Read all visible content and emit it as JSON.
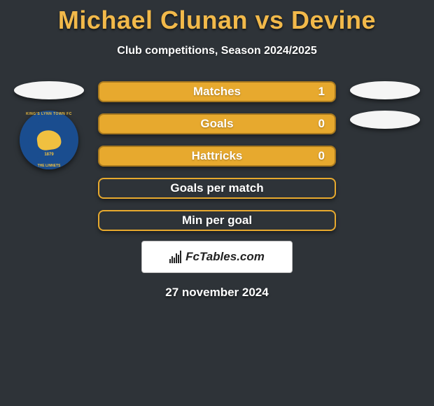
{
  "title": "Michael Clunan vs Devine",
  "subtitle": "Club competitions, Season 2024/2025",
  "date": "27 november 2024",
  "watermark_text": "FcTables.com",
  "colors": {
    "background": "#2e3338",
    "title_color": "#f2b94a",
    "text_color": "#ffffff",
    "oval_bg": "#f5f5f5",
    "bar_fill_primary": "#e7a92e",
    "bar_border": "#a8791f",
    "bar_empty_bg": "#2e3338",
    "bar_empty_border": "#e7a92e"
  },
  "stats": [
    {
      "label": "Matches",
      "value": "1",
      "fill": 1.0,
      "has_value": true
    },
    {
      "label": "Goals",
      "value": "0",
      "fill": 1.0,
      "has_value": true
    },
    {
      "label": "Hattricks",
      "value": "0",
      "fill": 1.0,
      "has_value": true
    },
    {
      "label": "Goals per match",
      "value": "",
      "fill": 0.0,
      "has_value": false
    },
    {
      "label": "Min per goal",
      "value": "",
      "fill": 0.0,
      "has_value": false
    }
  ],
  "left_ovals": 1,
  "right_ovals": 2,
  "club_badge": {
    "ring_top": "KING'S LYNN TOWN FC",
    "ring_bot": "THE LINNETS",
    "year": "1879",
    "outer_color": "#1a4d8f",
    "accent_color": "#f0c040"
  }
}
